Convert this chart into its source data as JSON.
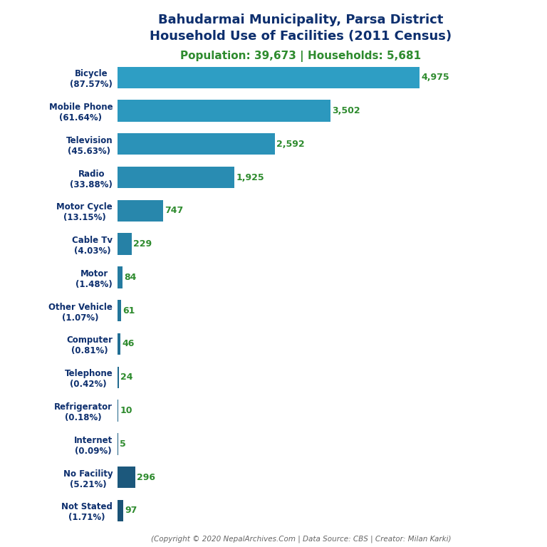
{
  "title_line1": "Bahudarmai Municipality, Parsa District",
  "title_line2": "Household Use of Facilities (2011 Census)",
  "subtitle": "Population: 39,673 | Households: 5,681",
  "footer": "(Copyright © 2020 NepalArchives.Com | Data Source: CBS | Creator: Milan Karki)",
  "categories": [
    "Not Stated\n(1.71%)",
    "No Facility\n(5.21%)",
    "Internet\n(0.09%)",
    "Refrigerator\n(0.18%)",
    "Telephone\n(0.42%)",
    "Computer\n(0.81%)",
    "Other Vehicle\n(1.07%)",
    "Motor\n(1.48%)",
    "Cable Tv\n(4.03%)",
    "Motor Cycle\n(13.15%)",
    "Radio\n(33.88%)",
    "Television\n(45.63%)",
    "Mobile Phone\n(61.64%)",
    "Bicycle\n(87.57%)"
  ],
  "values": [
    97,
    296,
    5,
    10,
    24,
    46,
    61,
    84,
    229,
    747,
    1925,
    2592,
    3502,
    4975
  ],
  "title_color": "#0d2f6e",
  "subtitle_color": "#2e8b2e",
  "value_color": "#2e8b2e",
  "footer_color": "#666666",
  "background_color": "#ffffff",
  "bar_color_dark": "#1a5276",
  "bar_color_mid": "#1f6faa",
  "bar_color_light": "#2e9ec4"
}
